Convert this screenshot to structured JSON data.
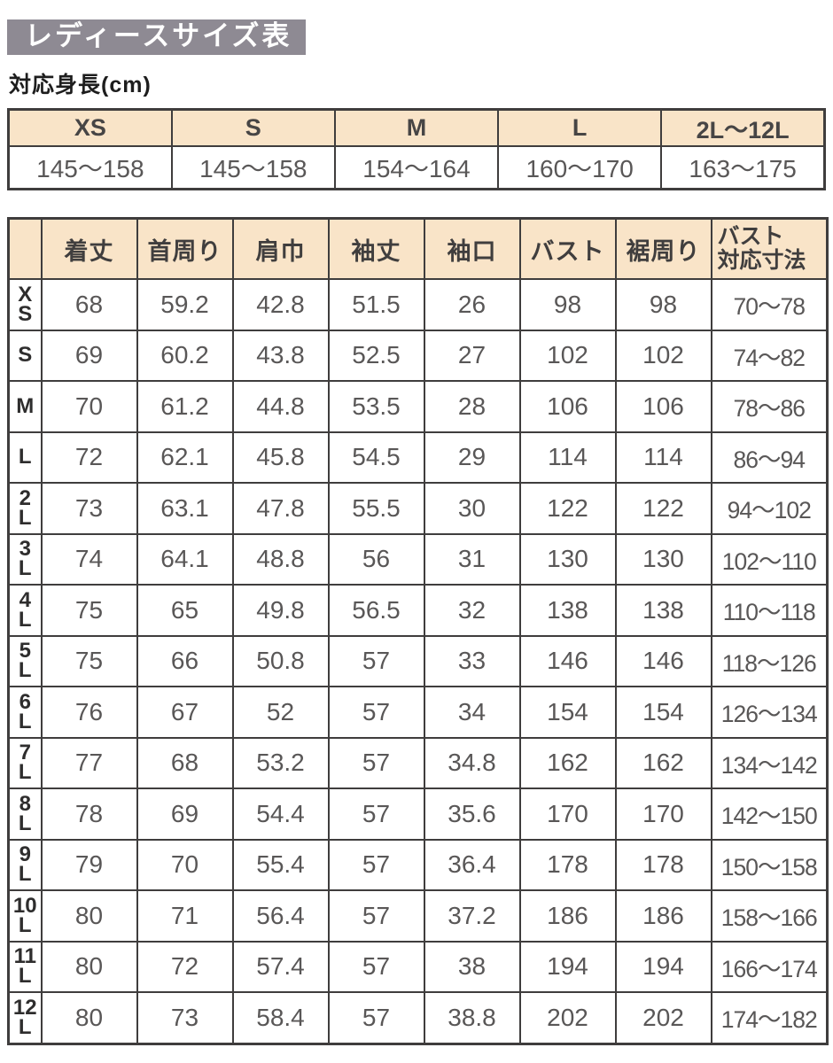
{
  "page": {
    "title": "レディースサイズ表",
    "subtitle": "対応身長(cm)"
  },
  "colors": {
    "title_bg": "#8e8a93",
    "title_text": "#ffffff",
    "table_header_bg": "#f9e4c8",
    "border": "#3f3d3d",
    "value_text": "#595757",
    "label_text": "#2e2d2d"
  },
  "height_table": {
    "columns": [
      {
        "size": "XS",
        "range": "145～158"
      },
      {
        "size": "S",
        "range": "145～158"
      },
      {
        "size": "M",
        "range": "154～164"
      },
      {
        "size": "L",
        "range": "160～170"
      },
      {
        "size": "2L～12L",
        "range": "163～175"
      }
    ]
  },
  "size_table": {
    "column_headers": [
      "着丈",
      "首周り",
      "肩巾",
      "袖丈",
      "袖口",
      "バスト",
      "裾周り",
      "バスト\n対応寸法"
    ],
    "rows": [
      {
        "label": "X\nS",
        "values": [
          "68",
          "59.2",
          "42.8",
          "51.5",
          "26",
          "98",
          "98",
          "70～78"
        ]
      },
      {
        "label": "S",
        "values": [
          "69",
          "60.2",
          "43.8",
          "52.5",
          "27",
          "102",
          "102",
          "74～82"
        ]
      },
      {
        "label": "M",
        "values": [
          "70",
          "61.2",
          "44.8",
          "53.5",
          "28",
          "106",
          "106",
          "78～86"
        ]
      },
      {
        "label": "L",
        "values": [
          "72",
          "62.1",
          "45.8",
          "54.5",
          "29",
          "114",
          "114",
          "86～94"
        ]
      },
      {
        "label": "2\nL",
        "values": [
          "73",
          "63.1",
          "47.8",
          "55.5",
          "30",
          "122",
          "122",
          "94～102"
        ]
      },
      {
        "label": "3\nL",
        "values": [
          "74",
          "64.1",
          "48.8",
          "56",
          "31",
          "130",
          "130",
          "102～110"
        ]
      },
      {
        "label": "4\nL",
        "values": [
          "75",
          "65",
          "49.8",
          "56.5",
          "32",
          "138",
          "138",
          "110～118"
        ]
      },
      {
        "label": "5\nL",
        "values": [
          "75",
          "66",
          "50.8",
          "57",
          "33",
          "146",
          "146",
          "118～126"
        ]
      },
      {
        "label": "6\nL",
        "values": [
          "76",
          "67",
          "52",
          "57",
          "34",
          "154",
          "154",
          "126～134"
        ]
      },
      {
        "label": "7\nL",
        "values": [
          "77",
          "68",
          "53.2",
          "57",
          "34.8",
          "162",
          "162",
          "134～142"
        ]
      },
      {
        "label": "8\nL",
        "values": [
          "78",
          "69",
          "54.4",
          "57",
          "35.6",
          "170",
          "170",
          "142～150"
        ]
      },
      {
        "label": "9\nL",
        "values": [
          "79",
          "70",
          "55.4",
          "57",
          "36.4",
          "178",
          "178",
          "150～158"
        ]
      },
      {
        "label": "10\nL",
        "values": [
          "80",
          "71",
          "56.4",
          "57",
          "37.2",
          "186",
          "186",
          "158～166"
        ]
      },
      {
        "label": "11\nL",
        "values": [
          "80",
          "72",
          "57.4",
          "57",
          "38",
          "194",
          "194",
          "166～174"
        ]
      },
      {
        "label": "12\nL",
        "values": [
          "80",
          "73",
          "58.4",
          "57",
          "38.8",
          "202",
          "202",
          "174～182"
        ]
      }
    ]
  }
}
